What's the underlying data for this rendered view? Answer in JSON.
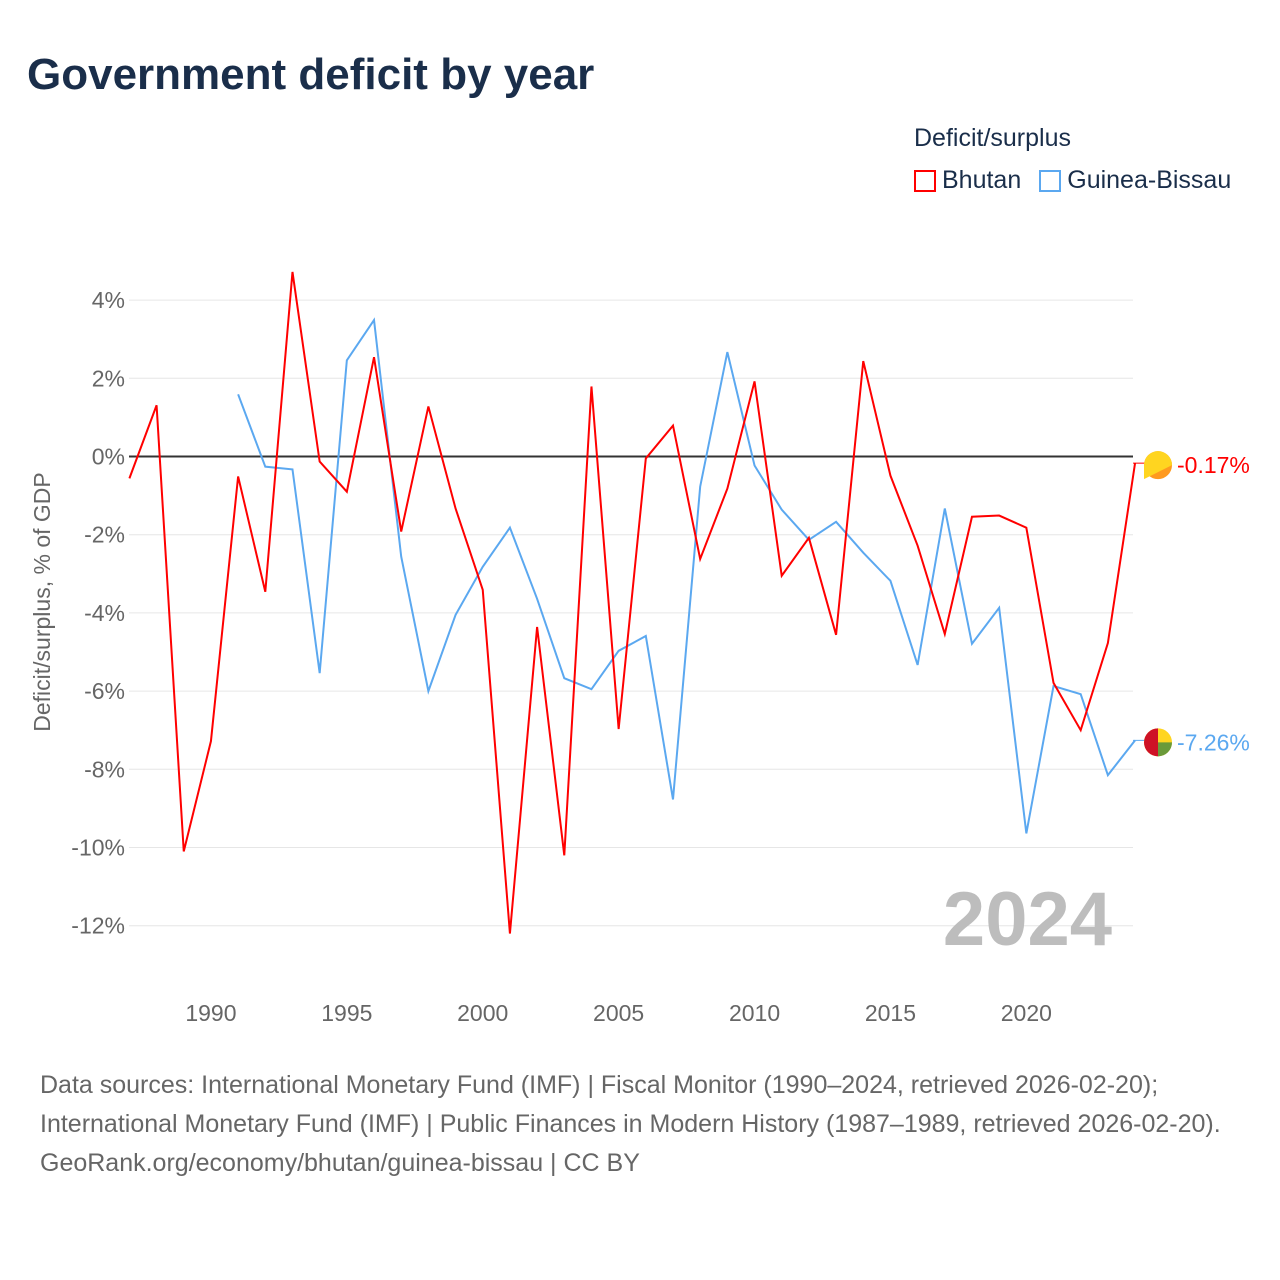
{
  "title": "Government deficit by year",
  "legend": {
    "title": "Deficit/surplus",
    "items": [
      {
        "name": "Bhutan",
        "color": "#ff0000"
      },
      {
        "name": "Guinea-Bissau",
        "color": "#5ba8f0"
      }
    ]
  },
  "footer": {
    "sources": "Data sources: International Monetary Fund (IMF) | Fiscal Monitor (1990–2024, retrieved 2026-02-20); International Monetary Fund (IMF) | Public Finances in Modern History (1987–1989, retrieved 2026-02-20).",
    "credit": "GeoRank.org/economy/bhutan/guinea-bissau | CC BY"
  },
  "chart_data": {
    "type": "line",
    "title": "Government deficit by year",
    "xlabel": "",
    "ylabel": "Deficit/surplus, % of GDP",
    "xlim": [
      1987,
      2024
    ],
    "ylim": [
      -13,
      4.8
    ],
    "year_label": "2024",
    "x_ticks": [
      1990,
      1995,
      2000,
      2005,
      2010,
      2015,
      2020
    ],
    "y_ticks": [
      {
        "v": 4,
        "label": "4%"
      },
      {
        "v": 2,
        "label": "2%"
      },
      {
        "v": 0,
        "label": "0%"
      },
      {
        "v": -2,
        "label": "-2%"
      },
      {
        "v": -4,
        "label": "-4%"
      },
      {
        "v": -6,
        "label": "-6%"
      },
      {
        "v": -8,
        "label": "-8%"
      },
      {
        "v": -10,
        "label": "-10%"
      },
      {
        "v": -12,
        "label": "-12%"
      }
    ],
    "series": [
      {
        "name": "Bhutan",
        "color": "#ff0000",
        "end_label": "-0.17%",
        "start": 1987,
        "values": [
          -0.56,
          1.31,
          -10.1,
          -7.28,
          -0.51,
          -3.46,
          4.72,
          -0.13,
          -0.9,
          2.54,
          -1.92,
          1.28,
          -1.33,
          -3.41,
          -12.2,
          -4.36,
          -10.2,
          1.79,
          -6.97,
          -0.05,
          0.79,
          -2.62,
          -0.82,
          1.92,
          -3.05,
          -2.08,
          -4.56,
          2.44,
          -0.49,
          -2.28,
          -4.54,
          -1.54,
          -1.51,
          -1.82,
          -5.79,
          -7.0,
          -4.77,
          -0.17
        ]
      },
      {
        "name": "Guinea-Bissau",
        "color": "#5ba8f0",
        "end_label": "-7.26%",
        "start": 1991,
        "values": [
          1.59,
          -0.26,
          -0.33,
          -5.54,
          2.46,
          3.49,
          -2.56,
          -6.0,
          -4.05,
          -2.82,
          -1.82,
          -3.64,
          -5.67,
          -5.95,
          -4.97,
          -4.59,
          -8.77,
          -0.77,
          2.67,
          -0.23,
          -1.36,
          -2.13,
          -1.67,
          -2.46,
          -3.18,
          -5.33,
          -1.33,
          -4.79,
          -3.87,
          -9.64,
          -5.87,
          -6.08,
          -8.15,
          -7.26
        ]
      }
    ]
  }
}
